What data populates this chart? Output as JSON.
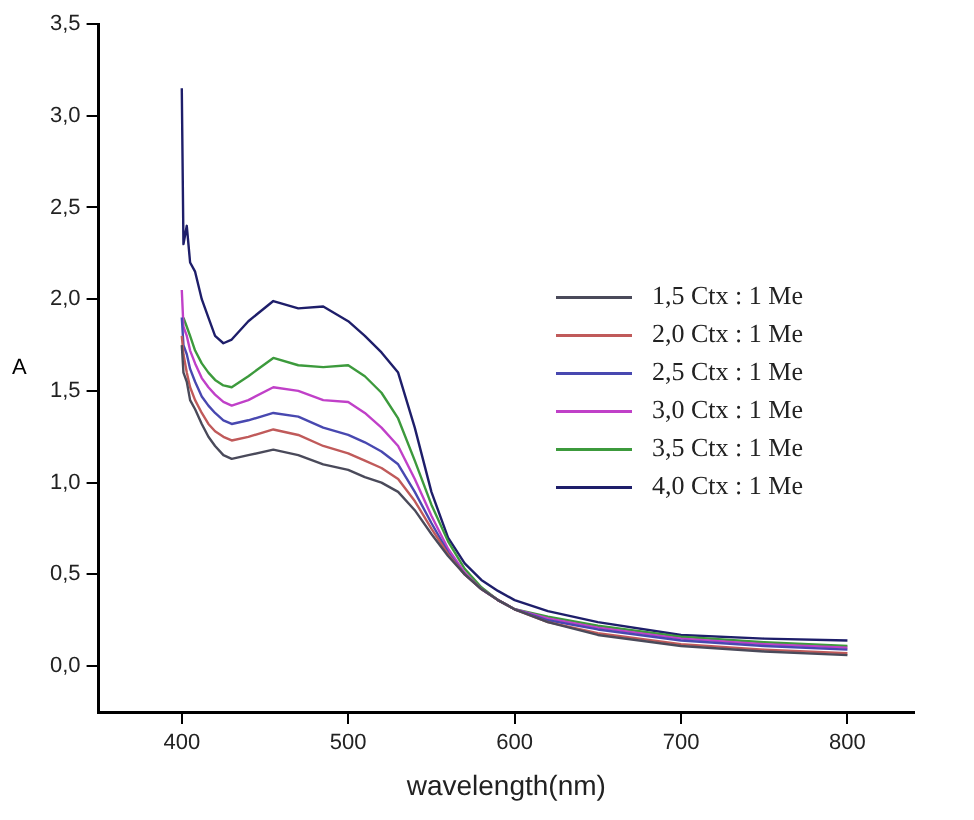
{
  "chart_data": {
    "type": "line",
    "xlabel": "wavelength(nm)",
    "ylabel": "A",
    "x": [
      400,
      401,
      403,
      405,
      408,
      412,
      416,
      420,
      425,
      430,
      440,
      455,
      470,
      485,
      500,
      510,
      520,
      530,
      540,
      550,
      560,
      570,
      580,
      590,
      600,
      620,
      650,
      700,
      750,
      800
    ],
    "series": [
      {
        "name": "1,5 Ctx : 1 Me",
        "color": "#4a4a5a",
        "values": [
          1.75,
          1.6,
          1.55,
          1.45,
          1.4,
          1.32,
          1.25,
          1.2,
          1.15,
          1.13,
          1.15,
          1.18,
          1.15,
          1.1,
          1.07,
          1.03,
          1.0,
          0.95,
          0.85,
          0.72,
          0.6,
          0.5,
          0.42,
          0.36,
          0.31,
          0.24,
          0.17,
          0.11,
          0.08,
          0.06
        ]
      },
      {
        "name": "2,0 Ctx : 1 Me",
        "color": "#c05a5a",
        "values": [
          1.8,
          1.7,
          1.6,
          1.52,
          1.45,
          1.38,
          1.32,
          1.28,
          1.25,
          1.23,
          1.25,
          1.29,
          1.26,
          1.2,
          1.16,
          1.12,
          1.08,
          1.02,
          0.9,
          0.75,
          0.61,
          0.5,
          0.42,
          0.36,
          0.31,
          0.24,
          0.18,
          0.12,
          0.09,
          0.07
        ]
      },
      {
        "name": "2,5 Ctx : 1 Me",
        "color": "#4848b0",
        "values": [
          1.9,
          1.75,
          1.7,
          1.62,
          1.55,
          1.47,
          1.42,
          1.38,
          1.34,
          1.32,
          1.34,
          1.38,
          1.36,
          1.3,
          1.26,
          1.22,
          1.17,
          1.1,
          0.95,
          0.78,
          0.62,
          0.5,
          0.42,
          0.36,
          0.31,
          0.25,
          0.2,
          0.14,
          0.11,
          0.09
        ]
      },
      {
        "name": "3,0 Ctx : 1 Me",
        "color": "#c040c8",
        "values": [
          2.05,
          1.85,
          1.8,
          1.72,
          1.65,
          1.57,
          1.52,
          1.48,
          1.44,
          1.42,
          1.45,
          1.52,
          1.5,
          1.45,
          1.44,
          1.38,
          1.3,
          1.2,
          1.02,
          0.82,
          0.64,
          0.51,
          0.42,
          0.36,
          0.31,
          0.26,
          0.21,
          0.15,
          0.12,
          0.1
        ]
      },
      {
        "name": "3,5 Ctx : 1 Me",
        "color": "#3c9a3c",
        "values": [
          null,
          1.9,
          1.85,
          1.8,
          1.72,
          1.65,
          1.6,
          1.56,
          1.53,
          1.52,
          1.58,
          1.68,
          1.64,
          1.63,
          1.64,
          1.58,
          1.49,
          1.35,
          1.12,
          0.88,
          0.68,
          0.53,
          0.43,
          0.36,
          0.31,
          0.27,
          0.22,
          0.16,
          0.13,
          0.11
        ]
      },
      {
        "name": "4,0 Ctx : 1 Me",
        "color": "#1e1e6a",
        "values": [
          3.15,
          2.3,
          2.4,
          2.2,
          2.15,
          2.0,
          1.9,
          1.8,
          1.76,
          1.78,
          1.88,
          1.99,
          1.95,
          1.96,
          1.88,
          1.8,
          1.71,
          1.6,
          1.3,
          0.95,
          0.7,
          0.56,
          0.47,
          0.41,
          0.36,
          0.3,
          0.24,
          0.17,
          0.15,
          0.14
        ]
      }
    ],
    "xlim": [
      350,
      840
    ],
    "xticks": [
      400,
      500,
      600,
      700,
      800
    ],
    "ylim": [
      -0.25,
      3.5
    ],
    "yticks": [
      {
        "value": 0,
        "label": "0,0"
      },
      {
        "value": 0.5,
        "label": "0,5"
      },
      {
        "value": 1,
        "label": "1,0"
      },
      {
        "value": 1.5,
        "label": "1,5"
      },
      {
        "value": 2,
        "label": "2,0"
      },
      {
        "value": 2.5,
        "label": "2,5"
      },
      {
        "value": 3,
        "label": "3,0"
      },
      {
        "value": 3.5,
        "label": "3,5"
      }
    ],
    "grid": false,
    "legend": "right",
    "marker": "none",
    "line_style": "solid"
  }
}
